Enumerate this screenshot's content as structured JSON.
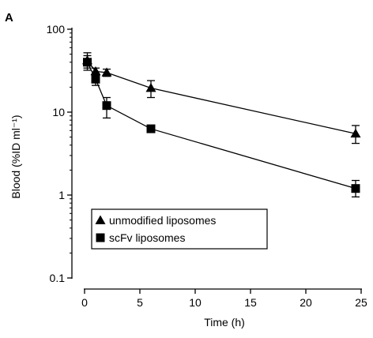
{
  "panel_label": "A",
  "chart_data": {
    "type": "line",
    "title": "",
    "xlabel": "Time (h)",
    "ylabel": "Blood (%ID ml⁻¹)",
    "xlim": [
      0,
      25
    ],
    "ylim": [
      0.1,
      100
    ],
    "yscale": "log",
    "x_ticks": [
      0,
      5,
      10,
      15,
      20,
      25
    ],
    "x_tick_labels": [
      "0",
      "5",
      "10",
      "15",
      "20",
      "25"
    ],
    "y_ticks": [
      0.1,
      1,
      10,
      100
    ],
    "y_tick_labels": [
      "0.1",
      "1",
      "10",
      "100"
    ],
    "grid": false,
    "legend_position": "lower-left",
    "series": [
      {
        "name": "unmodified liposomes",
        "marker": "triangle",
        "x": [
          0.25,
          1,
          2,
          6,
          24.5
        ],
        "y": [
          42,
          31,
          30,
          19.5,
          5.5
        ],
        "err_low": [
          34,
          27,
          27,
          15,
          4.2
        ],
        "err_high": [
          52,
          34,
          33,
          24,
          6.9
        ]
      },
      {
        "name": "scFv liposomes",
        "marker": "square",
        "x": [
          0.25,
          1,
          2,
          6,
          24.5
        ],
        "y": [
          40,
          25,
          12,
          6.3,
          1.2
        ],
        "err_low": [
          32,
          21,
          8.5,
          5.8,
          0.95
        ],
        "err_high": [
          48,
          29,
          15,
          6.9,
          1.5
        ]
      }
    ],
    "colors": {
      "line": "#000000",
      "marker": "#000000"
    }
  }
}
